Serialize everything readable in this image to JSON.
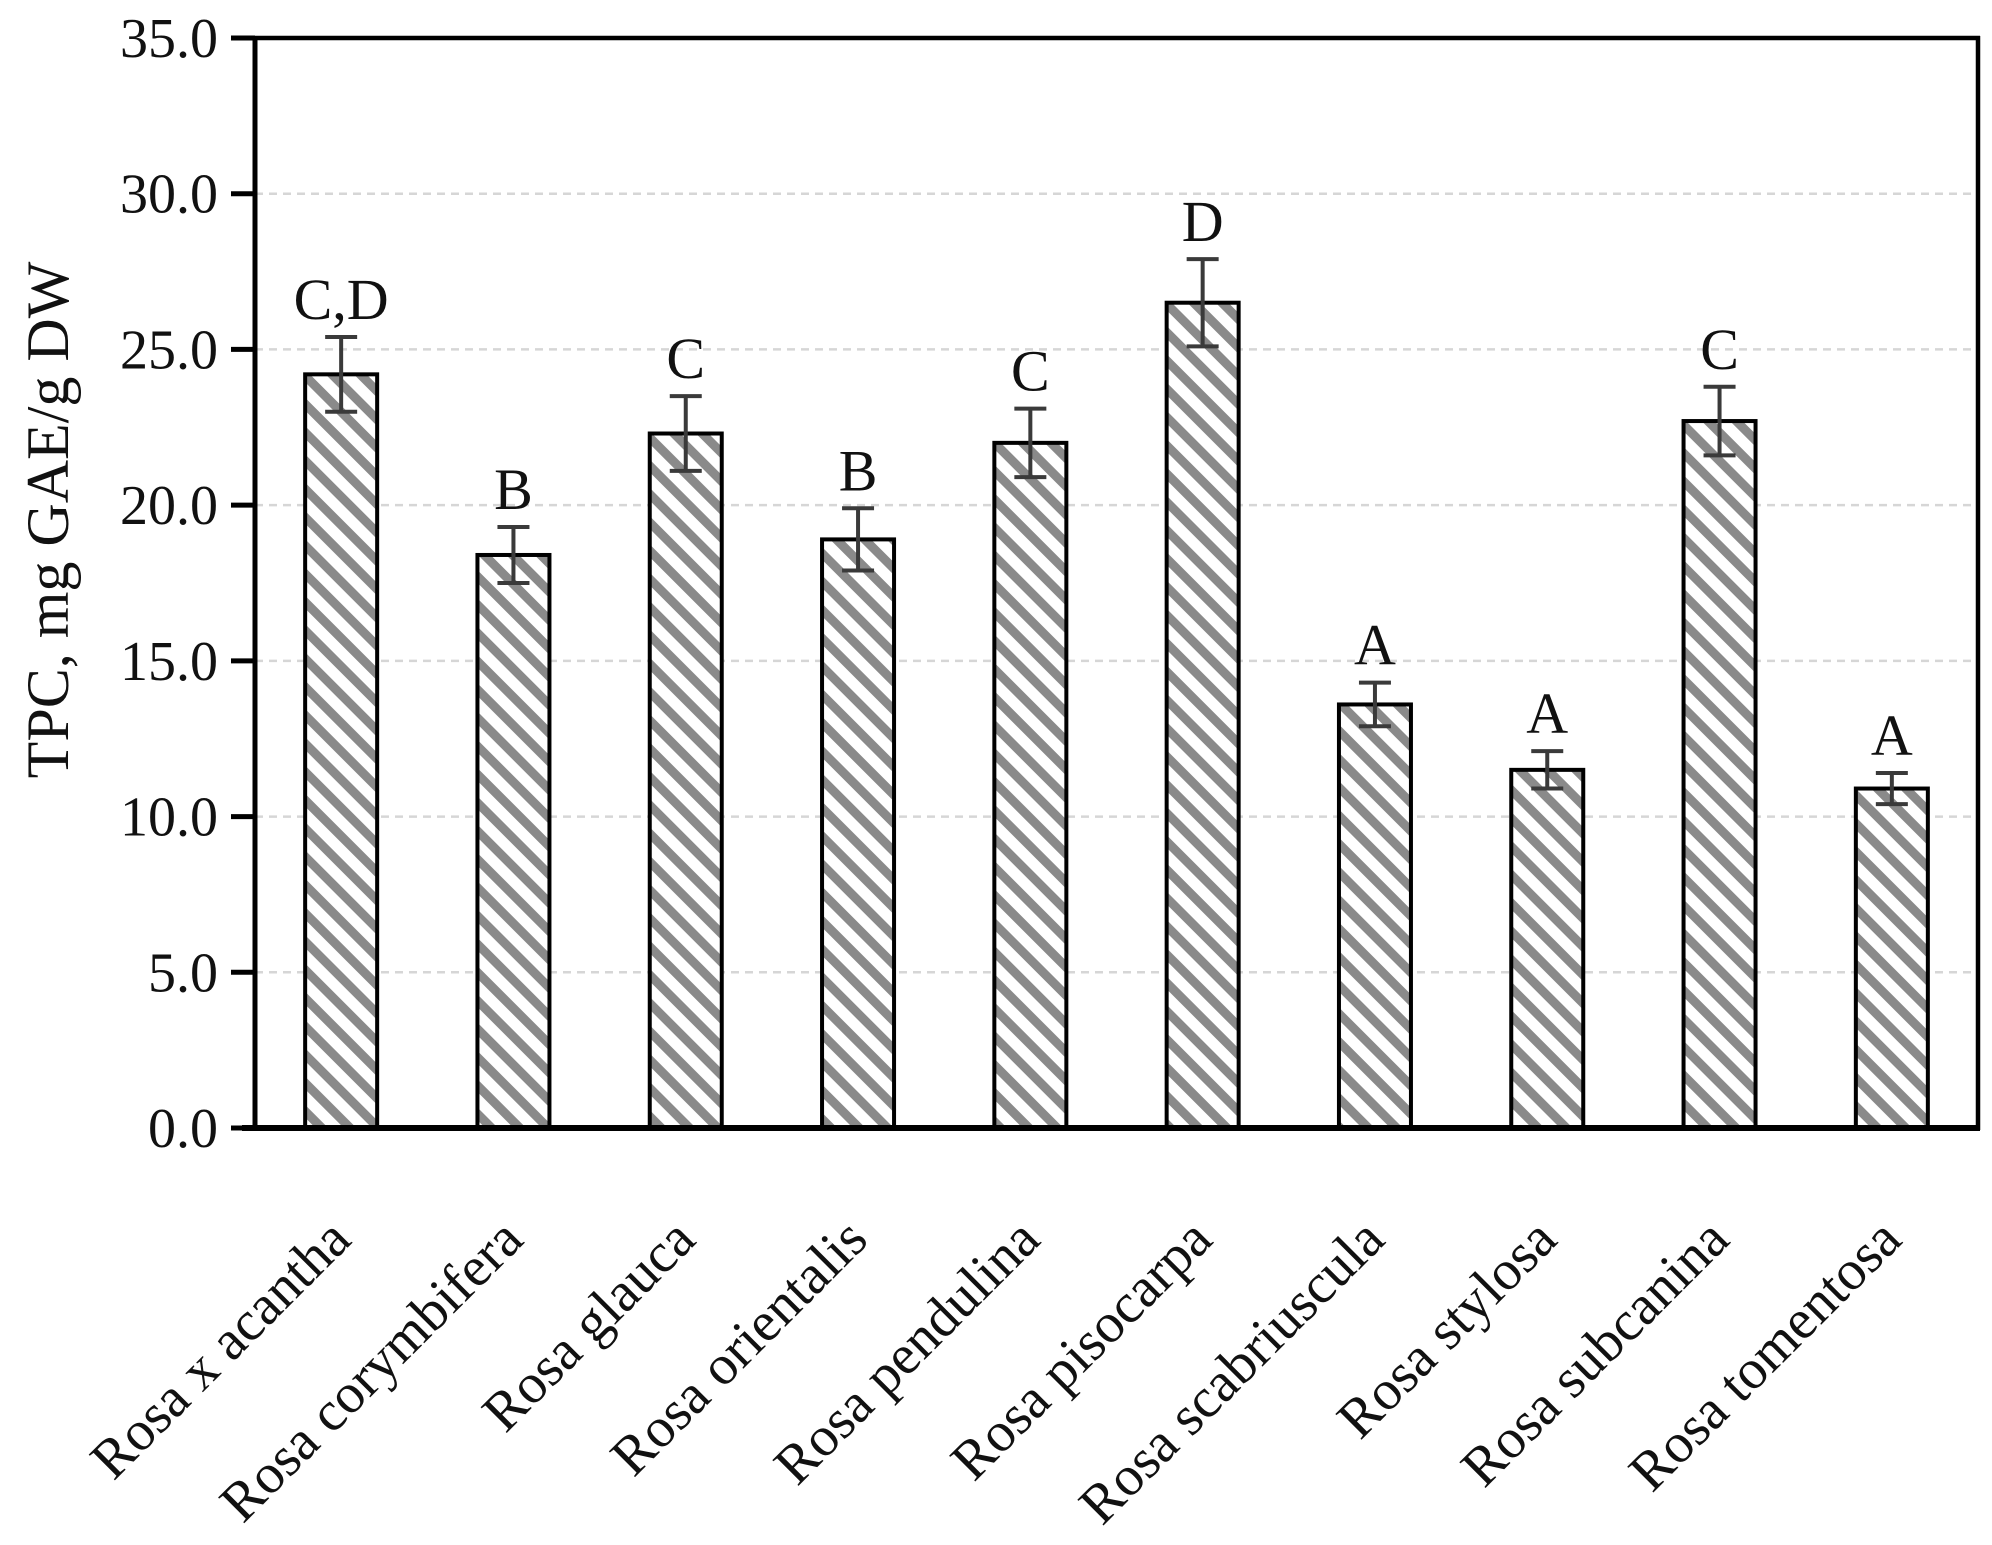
{
  "figure": {
    "background": "#ffffff",
    "axis_color": "#000000",
    "grid_color": "#d6d6d6",
    "bar_fill": "#ffffff",
    "bar_hatch_color": "#8a8a8a",
    "bar_border_color": "#000000",
    "error_bar_color": "#3a3a3a",
    "text_color": "#111111"
  },
  "chart_data": {
    "type": "bar",
    "title": "",
    "xlabel": "",
    "ylabel": "TPC, mg GAE/g DW",
    "ylim": [
      0,
      35
    ],
    "ytick_step": 5,
    "yticks": [
      0,
      5,
      10,
      15,
      20,
      25,
      30,
      35
    ],
    "ytick_labels": [
      "0.0",
      "5.0",
      "10.0",
      "15.0",
      "20.0",
      "25.0",
      "30.0",
      "35.0"
    ],
    "grid": true,
    "legend": false,
    "hatch_style": "backslash-diagonal",
    "categories": [
      "Rosa x acantha",
      "Rosa corymbifera",
      "Rosa glauca",
      "Rosa orientalis",
      "Rosa pendulina",
      "Rosa pisocarpa",
      "Rosa scabriuscula",
      "Rosa stylosa",
      "Rosa subcanina",
      "Rosa tomentosa"
    ],
    "values": [
      24.2,
      18.4,
      22.3,
      18.9,
      22.0,
      26.5,
      13.6,
      11.5,
      22.7,
      10.9
    ],
    "errors": [
      1.2,
      0.9,
      1.2,
      1.0,
      1.1,
      1.4,
      0.7,
      0.6,
      1.1,
      0.5
    ],
    "significance_letters": [
      "C,D",
      "B",
      "C",
      "B",
      "C",
      "D",
      "A",
      "A",
      "C",
      "A"
    ]
  }
}
